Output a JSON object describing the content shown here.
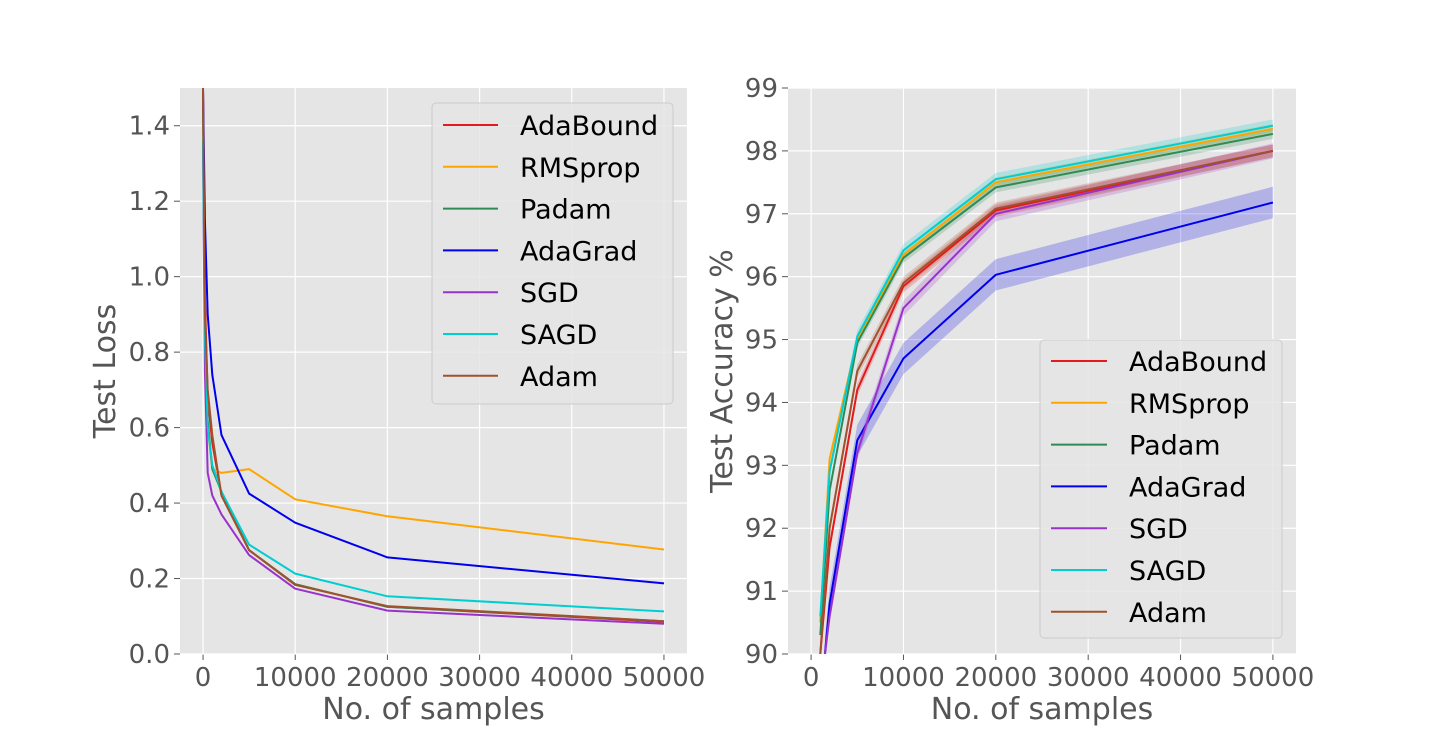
{
  "colors": {
    "AdaBound": "#e41a1c",
    "RMSprop": "#ffa500",
    "Padam": "#2e8b57",
    "AdaGrad": "#0000ee",
    "SGD": "#9932cc",
    "SAGD": "#00ced1",
    "Adam": "#a0522d",
    "panel_background": "#e5e5e5",
    "grid": "#ffffff"
  },
  "chart_data": [
    {
      "type": "line",
      "xlabel": "No. of samples",
      "ylabel": "Test Loss",
      "xlim": [
        -2500,
        52500
      ],
      "ylim": [
        0,
        1.5
      ],
      "xticks": [
        0,
        10000,
        20000,
        30000,
        40000,
        50000
      ],
      "xtick_labels": [
        "0",
        "10000",
        "20000",
        "30000",
        "40000",
        "50000"
      ],
      "yticks": [
        0,
        0.2,
        0.4,
        0.6,
        0.8,
        1.0,
        1.2,
        1.4
      ],
      "ytick_labels": [
        "0.0",
        "0.2",
        "0.4",
        "0.6",
        "0.8",
        "1.0",
        "1.2",
        "1.4"
      ],
      "grid": true,
      "legend_position": "upper right",
      "legend": [
        "AdaBound",
        "RMSprop",
        "Padam",
        "AdaGrad",
        "SGD",
        "SAGD",
        "Adam"
      ],
      "series": [
        {
          "name": "AdaBound",
          "x": [
            0,
            200,
            500,
            1000,
            2000,
            5000,
            10000,
            20000,
            50000
          ],
          "y": [
            1.5,
            0.95,
            0.68,
            0.56,
            0.42,
            0.275,
            0.185,
            0.125,
            0.085
          ]
        },
        {
          "name": "RMSprop",
          "x": [
            0,
            200,
            500,
            1000,
            2000,
            5000,
            10000,
            20000,
            50000
          ],
          "y": [
            1.5,
            0.9,
            0.6,
            0.49,
            0.48,
            0.49,
            0.41,
            0.365,
            0.277
          ]
        },
        {
          "name": "Padam",
          "x": [
            0,
            200,
            500,
            1000,
            2000,
            5000,
            10000,
            20000,
            50000
          ],
          "y": [
            1.45,
            0.85,
            0.62,
            0.49,
            0.43,
            0.275,
            0.185,
            0.125,
            0.087
          ]
        },
        {
          "name": "AdaGrad",
          "x": [
            0,
            200,
            500,
            1000,
            2000,
            5000,
            10000,
            20000,
            50000
          ],
          "y": [
            1.5,
            1.15,
            0.9,
            0.74,
            0.58,
            0.425,
            0.348,
            0.256,
            0.187
          ]
        },
        {
          "name": "SGD",
          "x": [
            0,
            200,
            500,
            1000,
            2000,
            5000,
            10000,
            20000,
            50000
          ],
          "y": [
            1.35,
            0.75,
            0.48,
            0.42,
            0.37,
            0.262,
            0.173,
            0.115,
            0.08
          ]
        },
        {
          "name": "SAGD",
          "x": [
            0,
            200,
            500,
            1000,
            2000,
            5000,
            10000,
            20000,
            50000
          ],
          "y": [
            1.36,
            0.85,
            0.6,
            0.5,
            0.43,
            0.29,
            0.213,
            0.153,
            0.113
          ]
        },
        {
          "name": "Adam",
          "x": [
            0,
            200,
            500,
            1000,
            2000,
            5000,
            10000,
            20000,
            50000
          ],
          "y": [
            1.5,
            0.9,
            0.7,
            0.58,
            0.42,
            0.275,
            0.183,
            0.127,
            0.087
          ]
        }
      ]
    },
    {
      "type": "line",
      "xlabel": "No. of samples",
      "ylabel": "Test Accuracy %",
      "xlim": [
        -2500,
        52500
      ],
      "ylim": [
        90,
        99
      ],
      "xticks": [
        0,
        10000,
        20000,
        30000,
        40000,
        50000
      ],
      "xtick_labels": [
        "0",
        "10000",
        "20000",
        "30000",
        "40000",
        "50000"
      ],
      "yticks": [
        90,
        91,
        92,
        93,
        94,
        95,
        96,
        97,
        98,
        99
      ],
      "ytick_labels": [
        "90",
        "91",
        "92",
        "93",
        "94",
        "95",
        "96",
        "97",
        "98",
        "99"
      ],
      "grid": true,
      "legend_position": "lower right",
      "legend": [
        "AdaBound",
        "RMSprop",
        "Padam",
        "AdaGrad",
        "SGD",
        "SAGD",
        "Adam"
      ],
      "series": [
        {
          "name": "AdaBound",
          "x": [
            1000,
            2000,
            5000,
            10000,
            20000,
            50000
          ],
          "y": [
            90.0,
            91.7,
            94.2,
            95.85,
            97.05,
            98.0
          ],
          "band": 0.1
        },
        {
          "name": "RMSprop",
          "x": [
            1000,
            2000,
            5000,
            10000,
            20000,
            50000
          ],
          "y": [
            90.5,
            93.1,
            95.0,
            96.35,
            97.5,
            98.35
          ],
          "band": 0.08
        },
        {
          "name": "Padam",
          "x": [
            1000,
            2000,
            5000,
            10000,
            20000,
            50000
          ],
          "y": [
            90.3,
            92.6,
            94.95,
            96.3,
            97.42,
            98.27
          ],
          "band": 0.08
        },
        {
          "name": "AdaGrad",
          "x": [
            1500,
            2000,
            5000,
            10000,
            20000,
            50000
          ],
          "y": [
            90.0,
            90.8,
            93.4,
            94.7,
            96.03,
            97.18
          ],
          "band": 0.25
        },
        {
          "name": "SGD",
          "x": [
            1500,
            2000,
            5000,
            10000,
            20000,
            50000
          ],
          "y": [
            90.0,
            90.6,
            93.2,
            95.5,
            97.0,
            98.0
          ],
          "band": 0.12
        },
        {
          "name": "SAGD",
          "x": [
            1000,
            2000,
            5000,
            10000,
            20000,
            50000
          ],
          "y": [
            90.6,
            92.9,
            95.05,
            96.42,
            97.55,
            98.4
          ],
          "band": 0.1
        },
        {
          "name": "Adam",
          "x": [
            1000,
            2000,
            5000,
            10000,
            20000,
            50000
          ],
          "y": [
            90.0,
            92.0,
            94.5,
            95.9,
            97.08,
            98.0
          ],
          "band": 0.1
        }
      ]
    }
  ]
}
